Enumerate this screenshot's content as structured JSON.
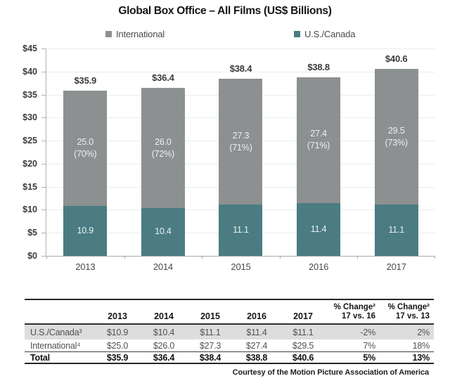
{
  "title": "Global Box Office – All Films (US$ Billions)",
  "chart_data": {
    "type": "bar",
    "stacked": true,
    "title": "Global Box Office – All Films (US$ Billions)",
    "categories": [
      "2013",
      "2014",
      "2015",
      "2016",
      "2017"
    ],
    "series": [
      {
        "name": "International",
        "color": "#8c9091",
        "values": [
          25.0,
          26.0,
          27.3,
          27.4,
          29.5
        ],
        "pct_labels": [
          "(70%)",
          "(72%)",
          "(71%)",
          "(71%)",
          "(73%)"
        ]
      },
      {
        "name": "U.S./Canada",
        "color": "#4a7c82",
        "values": [
          10.9,
          10.4,
          11.1,
          11.4,
          11.1
        ]
      }
    ],
    "totals": [
      35.9,
      36.4,
      38.4,
      38.8,
      40.6
    ],
    "total_labels": [
      "$35.9",
      "$36.4",
      "$38.4",
      "$38.8",
      "$40.6"
    ],
    "xlabel": "",
    "ylabel": "",
    "ylim": [
      0,
      45
    ],
    "y_tick_step": 5,
    "y_tick_labels": [
      "$0",
      "$5",
      "$10",
      "$15",
      "$20",
      "$25",
      "$30",
      "$35",
      "$40",
      "$45"
    ],
    "grid": true,
    "legend_position": "top"
  },
  "table": {
    "columns": [
      "",
      "2013",
      "2014",
      "2015",
      "2016",
      "2017",
      "% Change²\n17 vs. 16",
      "% Change²\n17 vs. 13"
    ],
    "rows": [
      {
        "label": "U.S./Canada³",
        "values": [
          "$10.9",
          "$10.4",
          "$11.1",
          "$11.4",
          "$11.1",
          "-2%",
          "2%"
        ],
        "shaded": true,
        "bold": false
      },
      {
        "label": "International⁴",
        "values": [
          "$25.0",
          "$26.0",
          "$27.3",
          "$27.4",
          "$29.5",
          "7%",
          "18%"
        ],
        "shaded": false,
        "bold": false
      },
      {
        "label": "Total",
        "values": [
          "$35.9",
          "$36.4",
          "$38.4",
          "$38.8",
          "$40.6",
          "5%",
          "13%"
        ],
        "shaded": false,
        "bold": true
      }
    ]
  },
  "footer": "Courtesy of the Motion Picture Association of America"
}
